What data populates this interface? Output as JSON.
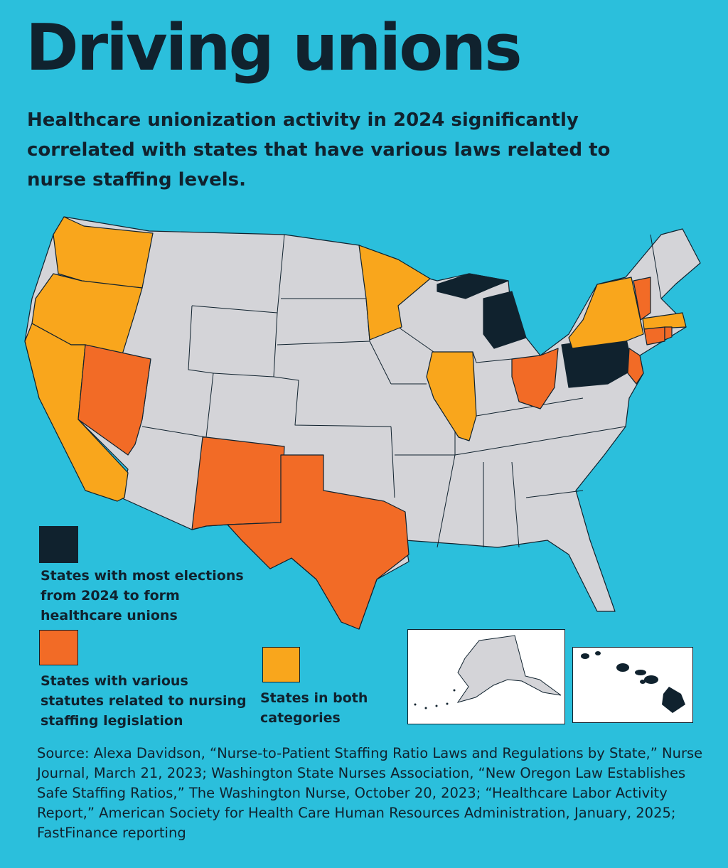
{
  "title": "Driving unions",
  "subtitle": "Healthcare unionization activity in 2024 significantly correlated with states that have various laws related to nurse staffing levels.",
  "colors": {
    "background": "#2bbfdc",
    "most_elections": "#10222e",
    "statutes": "#f26b26",
    "both": "#f9a61c",
    "other": "#d4d4d8"
  },
  "legend": [
    {
      "key": "most_elections",
      "label": "States with most elections from 2024 to form healthcare unions"
    },
    {
      "key": "statutes",
      "label": "States with various statutes related to nursing staffing legislation"
    },
    {
      "key": "both",
      "label": "States in both categories"
    }
  ],
  "map_data": {
    "most_elections": [
      "Michigan",
      "Pennsylvania"
    ],
    "statutes": [
      "Nevada",
      "New Mexico",
      "Texas",
      "Ohio",
      "Vermont",
      "Connecticut",
      "Rhode Island",
      "New Jersey"
    ],
    "both": [
      "Washington",
      "Oregon",
      "California",
      "Minnesota",
      "Illinois",
      "New York",
      "Massachusetts"
    ],
    "insets": [
      "Alaska",
      "Hawaii"
    ]
  },
  "source": "Source: Alexa Davidson, “Nurse-to-Patient Staffing Ratio Laws and Regulations by State,” Nurse Journal, March 21, 2023; Washington State Nurses Association, “New Oregon Law Establishes Safe Staffing Ratios,” The Washington Nurse, October 20, 2023; “Healthcare Labor Activity Report,” American Society for Health Care Human Resources Administration, January, 2025; FastFinance reporting"
}
